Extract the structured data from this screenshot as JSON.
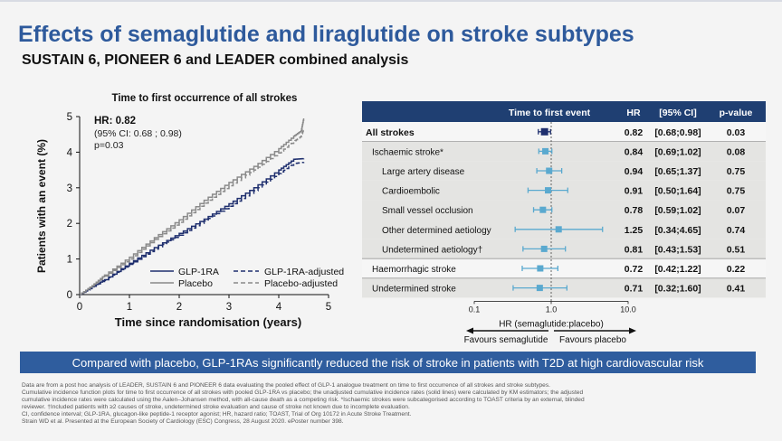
{
  "slide": {
    "title": "Effects of semaglutide and liraglutide on stroke subtypes",
    "subtitle": "SUSTAIN 6, PIONEER 6 and LEADER combined analysis",
    "banner": "Compared with placebo, GLP-1RAs significantly reduced the risk of stroke in patients with T2D at high cardiovascular risk",
    "footnotes": [
      "Data are from a post hoc analysis of LEADER, SUSTAIN 6 and PIONEER 6 data evaluating the pooled effect of GLP-1 analogue treatment on time to first occurrence of all strokes and stroke subtypes.",
      "Cumulative incidence function plots for time to first occurrence of all strokes with pooled GLP-1RA vs placebo; the unadjusted cumulative incidence rates (solid lines) were calculated by KM estimators; the adjusted",
      "cumulative incidence rates were calculated using the Aalen–Johansen method, with all-cause death as a competing risk. *Ischaemic strokes were subcategorised according to TOAST criteria by an external, blinded",
      "reviewer. †Included patients with ≥2 causes of stroke, undetermined stroke evaluation and cause of stroke not known due to incomplete evaluation.",
      "CI, confidence interval; GLP-1RA, glucagon-like peptide-1 receptor agonist; HR, hazard ratio; TOAST, Trial of Org 10172 in Acute Stroke Treatment.",
      "Strain WD et al. Presented at the European Society of Cardiology (ESC) Congress, 28 August 2020. ePoster number 398."
    ]
  },
  "chart_data": [
    {
      "type": "line",
      "title": "Time to first occurrence of all strokes",
      "xlabel": "Time since randomisation (years)",
      "ylabel": "Patients with an event (%)",
      "xlim": [
        0,
        5
      ],
      "ylim": [
        0,
        5
      ],
      "xticks": [
        "0",
        "1",
        "2",
        "3",
        "4",
        "5"
      ],
      "yticks": [
        "0",
        "1",
        "2",
        "3",
        "4",
        "5"
      ],
      "annotation": {
        "hr": "HR: 0.82",
        "ci": "(95% CI: 0.68 ; 0.98)",
        "p": "p=0.03"
      },
      "legend": [
        "GLP-1RA",
        "Placebo",
        "GLP-1RA-adjusted",
        "Placebo-adjusted"
      ],
      "legend_position": "bottom-right",
      "series": [
        {
          "name": "GLP-1RA",
          "color": "#1f2f6e",
          "dash": false,
          "x": [
            0,
            0.25,
            0.5,
            1.0,
            1.5,
            2.0,
            2.5,
            3.0,
            3.5,
            4.0,
            4.3,
            4.5
          ],
          "y": [
            0,
            0.22,
            0.42,
            0.88,
            1.32,
            1.72,
            2.12,
            2.55,
            3.0,
            3.5,
            3.8,
            3.82
          ]
        },
        {
          "name": "Placebo",
          "color": "#8a8a8a",
          "dash": false,
          "x": [
            0,
            0.25,
            0.5,
            1.0,
            1.5,
            2.0,
            2.5,
            3.0,
            3.5,
            4.0,
            4.3,
            4.45,
            4.5
          ],
          "y": [
            0,
            0.25,
            0.55,
            1.05,
            1.6,
            2.1,
            2.65,
            3.15,
            3.6,
            4.1,
            4.45,
            4.6,
            4.95
          ]
        },
        {
          "name": "GLP-1RA-adjusted",
          "color": "#1f2f6e",
          "dash": true,
          "x": [
            0,
            0.25,
            0.5,
            1.0,
            1.5,
            2.0,
            2.5,
            3.0,
            3.5,
            4.0,
            4.3,
            4.5
          ],
          "y": [
            0,
            0.2,
            0.4,
            0.85,
            1.28,
            1.67,
            2.07,
            2.48,
            2.92,
            3.4,
            3.68,
            3.72
          ]
        },
        {
          "name": "Placebo-adjusted",
          "color": "#8a8a8a",
          "dash": true,
          "x": [
            0,
            0.25,
            0.5,
            1.0,
            1.5,
            2.0,
            2.5,
            3.0,
            3.5,
            4.0,
            4.3,
            4.45,
            4.5
          ],
          "y": [
            0,
            0.24,
            0.52,
            1.0,
            1.55,
            2.03,
            2.57,
            3.06,
            3.5,
            3.98,
            4.3,
            4.45,
            4.65
          ]
        }
      ]
    },
    {
      "type": "forest",
      "xscale": "log",
      "xlim": [
        0.1,
        10.0
      ],
      "xticks": [
        "0.1",
        "1.0",
        "10.0"
      ],
      "xlabel": "HR (semaglutide:placebo)",
      "favours_left": "Favours semaglutide",
      "favours_right": "Favours placebo",
      "columns": [
        "Time to first event",
        "HR",
        "[95% CI]",
        "p-value"
      ],
      "rows": [
        {
          "label": "All strokes",
          "hr": 0.82,
          "lo": 0.68,
          "hi": 0.98,
          "hr_text": "0.82",
          "ci_text": "[0.68;0.98]",
          "p": "0.03",
          "bold": true,
          "shaded": false,
          "indent": 0,
          "color": "#1f2f6e"
        },
        {
          "label": "Ischaemic stroke*",
          "hr": 0.84,
          "lo": 0.69,
          "hi": 1.02,
          "hr_text": "0.84",
          "ci_text": "[0.69;1.02]",
          "p": "0.08",
          "bold": false,
          "shaded": true,
          "indent": 1,
          "color": "#5aa9cf"
        },
        {
          "label": "Large artery disease",
          "hr": 0.94,
          "lo": 0.65,
          "hi": 1.37,
          "hr_text": "0.94",
          "ci_text": "[0.65;1.37]",
          "p": "0.75",
          "bold": false,
          "shaded": true,
          "indent": 2,
          "color": "#5aa9cf"
        },
        {
          "label": "Cardioembolic",
          "hr": 0.91,
          "lo": 0.5,
          "hi": 1.64,
          "hr_text": "0.91",
          "ci_text": "[0.50;1.64]",
          "p": "0.75",
          "bold": false,
          "shaded": true,
          "indent": 2,
          "color": "#5aa9cf"
        },
        {
          "label": "Small vessel occlusion",
          "hr": 0.78,
          "lo": 0.59,
          "hi": 1.02,
          "hr_text": "0.78",
          "ci_text": "[0.59;1.02]",
          "p": "0.07",
          "bold": false,
          "shaded": true,
          "indent": 2,
          "color": "#5aa9cf"
        },
        {
          "label": "Other determined aetiology",
          "hr": 1.25,
          "lo": 0.34,
          "hi": 4.65,
          "hr_text": "1.25",
          "ci_text": "[0.34;4.65]",
          "p": "0.74",
          "bold": false,
          "shaded": true,
          "indent": 2,
          "color": "#5aa9cf"
        },
        {
          "label": "Undetermined aetiology†",
          "hr": 0.81,
          "lo": 0.43,
          "hi": 1.53,
          "hr_text": "0.81",
          "ci_text": "[0.43;1.53]",
          "p": "0.51",
          "bold": false,
          "shaded": true,
          "indent": 2,
          "color": "#5aa9cf"
        },
        {
          "label": "Haemorrhagic stroke",
          "hr": 0.72,
          "lo": 0.42,
          "hi": 1.22,
          "hr_text": "0.72",
          "ci_text": "[0.42;1.22]",
          "p": "0.22",
          "bold": false,
          "shaded": false,
          "indent": 1,
          "color": "#5aa9cf"
        },
        {
          "label": "Undetermined stroke",
          "hr": 0.71,
          "lo": 0.32,
          "hi": 1.6,
          "hr_text": "0.71",
          "ci_text": "[0.32;1.60]",
          "p": "0.41",
          "bold": false,
          "shaded": true,
          "indent": 1,
          "color": "#5aa9cf"
        }
      ]
    }
  ]
}
